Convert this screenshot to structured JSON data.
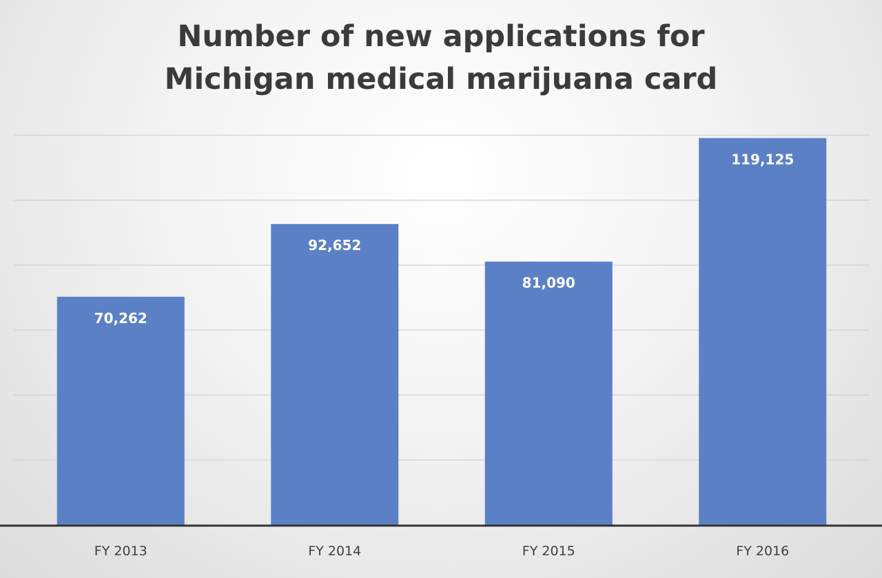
{
  "chart_data": {
    "type": "bar",
    "title_lines": [
      "Number of new applications for",
      "Michigan medical marijuana card"
    ],
    "categories": [
      "FY 2013",
      "FY 2014",
      "FY 2015",
      "FY 2016"
    ],
    "values": [
      70262,
      92652,
      81090,
      119125
    ],
    "value_labels": [
      "70,262",
      "92,652",
      "81,090",
      "119,125"
    ],
    "xlabel": "",
    "ylabel": "",
    "ylim": [
      0,
      140000
    ],
    "grid": true,
    "legend": "none",
    "bar_color": "#5b80c6",
    "axis_color": "#333333",
    "gridline_color": "#d2d2d2",
    "value_label_color": "#ffffff",
    "tick_label_color": "#404040"
  }
}
